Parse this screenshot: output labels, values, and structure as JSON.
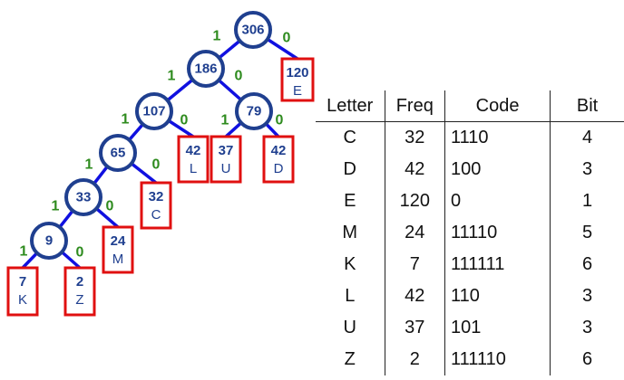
{
  "tree": {
    "nodes": [
      {
        "id": "n306",
        "value": "306"
      },
      {
        "id": "n186",
        "value": "186"
      },
      {
        "id": "n107",
        "value": "107"
      },
      {
        "id": "n79",
        "value": "79"
      },
      {
        "id": "n65",
        "value": "65"
      },
      {
        "id": "n33",
        "value": "33"
      },
      {
        "id": "n9",
        "value": "9"
      }
    ],
    "leaves": [
      {
        "id": "lE",
        "freq": "120",
        "letter": "E"
      },
      {
        "id": "lL",
        "freq": "42",
        "letter": "L"
      },
      {
        "id": "lU",
        "freq": "37",
        "letter": "U"
      },
      {
        "id": "lD",
        "freq": "42",
        "letter": "D"
      },
      {
        "id": "lC",
        "freq": "32",
        "letter": "C"
      },
      {
        "id": "lM",
        "freq": "24",
        "letter": "M"
      },
      {
        "id": "lK",
        "freq": "7",
        "letter": "K"
      },
      {
        "id": "lZ",
        "freq": "2",
        "letter": "Z"
      }
    ],
    "edges": [
      {
        "from": "n306",
        "to": "n186",
        "label": "1"
      },
      {
        "from": "n306",
        "to": "lE",
        "label": "0"
      },
      {
        "from": "n186",
        "to": "n107",
        "label": "1"
      },
      {
        "from": "n186",
        "to": "n79",
        "label": "0"
      },
      {
        "from": "n107",
        "to": "n65",
        "label": "1"
      },
      {
        "from": "n107",
        "to": "lL",
        "label": "0"
      },
      {
        "from": "n79",
        "to": "lU",
        "label": "1"
      },
      {
        "from": "n79",
        "to": "lD",
        "label": "0"
      },
      {
        "from": "n65",
        "to": "n33",
        "label": "1"
      },
      {
        "from": "n65",
        "to": "lC",
        "label": "0"
      },
      {
        "from": "n33",
        "to": "n9",
        "label": "1"
      },
      {
        "from": "n33",
        "to": "lM",
        "label": "0"
      },
      {
        "from": "n9",
        "to": "lK",
        "label": "1"
      },
      {
        "from": "n9",
        "to": "lZ",
        "label": "0"
      }
    ]
  },
  "table": {
    "headers": {
      "letter": "Letter",
      "freq": "Freq",
      "code": "Code",
      "bit": "Bit"
    },
    "rows": [
      {
        "letter": "C",
        "freq": "32",
        "code": "1110",
        "bit": "4"
      },
      {
        "letter": "D",
        "freq": "42",
        "code": "100",
        "bit": "3"
      },
      {
        "letter": "E",
        "freq": "120",
        "code": "0",
        "bit": "1"
      },
      {
        "letter": "M",
        "freq": "24",
        "code": "11110",
        "bit": "5"
      },
      {
        "letter": "K",
        "freq": "7",
        "code": "111111",
        "bit": "6"
      },
      {
        "letter": "L",
        "freq": "42",
        "code": "110",
        "bit": "3"
      },
      {
        "letter": "U",
        "freq": "37",
        "code": "101",
        "bit": "3"
      },
      {
        "letter": "Z",
        "freq": "2",
        "code": "111110",
        "bit": "6"
      }
    ]
  },
  "colors": {
    "node_border": "#1f3f8f",
    "edge": "#1010e0",
    "edge_label": "#2e8b1e",
    "leaf_border": "#e01010"
  }
}
